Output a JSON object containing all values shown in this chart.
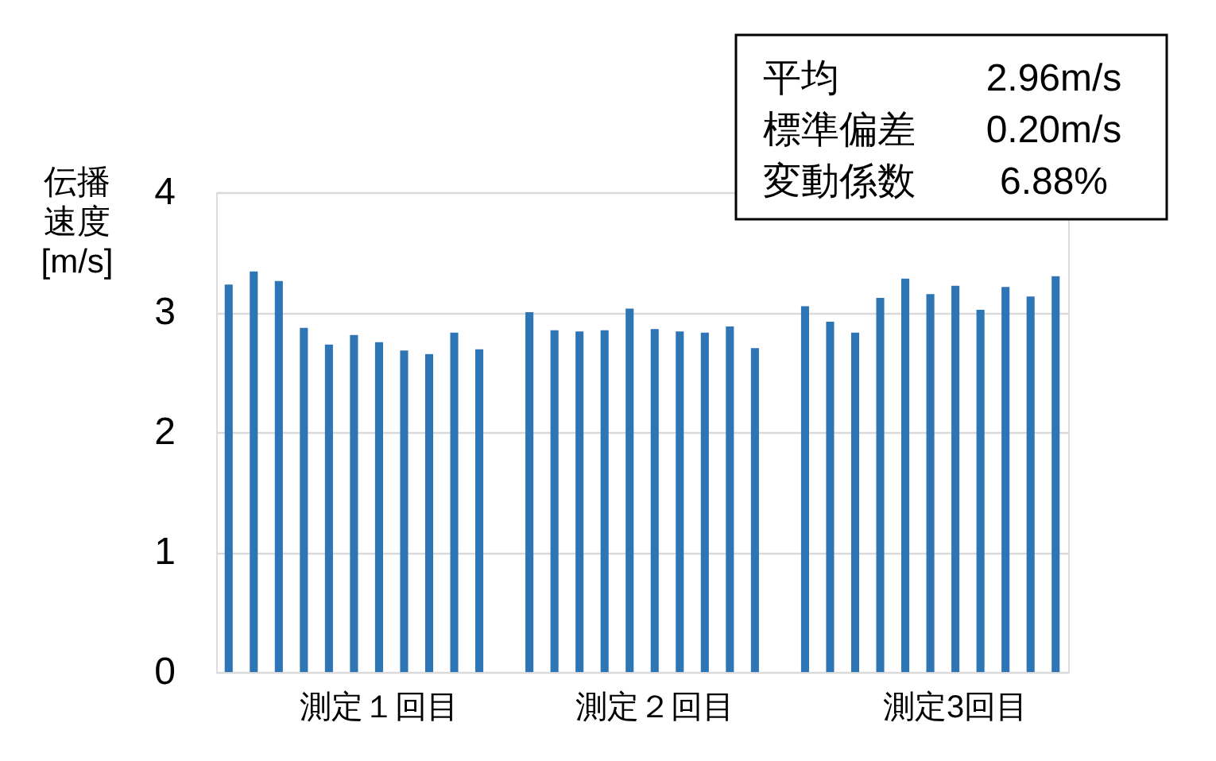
{
  "chart_data": {
    "type": "bar",
    "ylabel": "伝播速度[m/s]",
    "categories": [
      null,
      null,
      null,
      null,
      null,
      null,
      "測定１回目",
      null,
      null,
      null,
      null,
      null,
      null,
      null,
      null,
      null,
      null,
      "測定２回目",
      null,
      null,
      null,
      null,
      null,
      null,
      null,
      null,
      null,
      null,
      null,
      "測定3回目",
      null,
      null,
      null,
      null
    ],
    "values": [
      3.23,
      3.34,
      3.26,
      2.87,
      2.73,
      2.81,
      2.75,
      2.68,
      2.65,
      2.83,
      2.69,
      null,
      3.0,
      2.85,
      2.84,
      2.85,
      3.03,
      2.86,
      2.84,
      2.83,
      2.88,
      2.7,
      null,
      3.05,
      2.92,
      2.83,
      3.12,
      3.28,
      3.15,
      3.22,
      3.02,
      3.21,
      3.13,
      3.3
    ],
    "color": "#2e75b6",
    "ylim": [
      0,
      4
    ],
    "yticks": [
      0,
      1,
      2,
      3,
      4
    ],
    "grid": "y",
    "annotations": [
      "平均",
      "2.96m/s",
      "標準偏差",
      "0.20m/s",
      "変動係数",
      "6.88%"
    ]
  }
}
